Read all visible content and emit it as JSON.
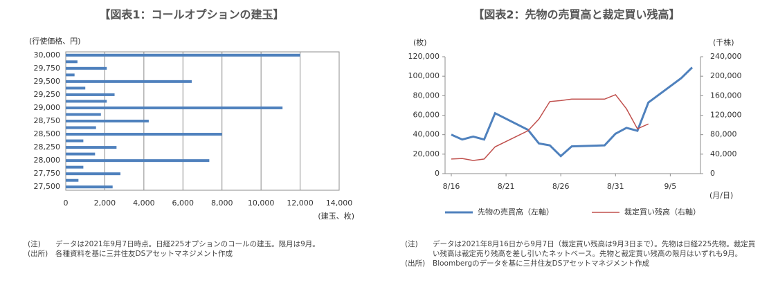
{
  "chart_data": [
    {
      "type": "bar",
      "orientation": "horizontal",
      "title": "【図表1：コールオプションの建玉】",
      "y_label": "(行使価格、円)",
      "x_label": "(建玉、枚)",
      "color": "#4f81bd",
      "grid": true,
      "categories": [
        "30,000",
        null,
        "29,750",
        null,
        "29,500",
        null,
        "29,250",
        null,
        "29,000",
        null,
        "28,750",
        null,
        "28,500",
        null,
        "28,250",
        null,
        "28,000",
        null,
        "27,750",
        null,
        "27,500"
      ],
      "values": [
        12000,
        600,
        2100,
        450,
        6450,
        1000,
        2500,
        2100,
        11100,
        1800,
        4250,
        1550,
        8000,
        900,
        2600,
        1500,
        7350,
        900,
        2800,
        650,
        2400
      ],
      "xlim": [
        0,
        14000
      ],
      "xticks": [
        0,
        {
          "value": 2000,
          "label": "2,000"
        },
        {
          "value": 4000,
          "label": "4,000"
        },
        {
          "value": 6000,
          "label": "6,000"
        },
        {
          "value": 8000,
          "label": "8,000"
        },
        {
          "value": 10000,
          "label": "10,000"
        },
        {
          "value": 12000,
          "label": "12,000"
        },
        {
          "value": 14000,
          "label": "14,000"
        }
      ],
      "notes": [
        {
          "label": "(注)",
          "text": "データは2021年9月7日時点。日経225オプションのコールの建玉。限月は9月。"
        },
        {
          "label": "(出所)",
          "text": "各種資料を基に三井住友DSアセットマネジメント作成"
        }
      ]
    },
    {
      "type": "line",
      "title": "【図表2：先物の売買高と裁定買い残高】",
      "y_label": "(枚)",
      "y2_label": "(千株)",
      "x_label": "(月/日)",
      "x": [
        "8/16",
        "8/17",
        "8/18",
        "8/19",
        "8/20",
        "8/23",
        "8/24",
        "8/25",
        "8/26",
        "8/27",
        "8/30",
        "8/31",
        "9/1",
        "9/2",
        "9/3",
        "9/6",
        "9/7"
      ],
      "xlim": [
        "8/16",
        "9/7"
      ],
      "xticks": [
        "8/16",
        "8/21",
        "8/26",
        "8/31",
        "9/5"
      ],
      "series": [
        {
          "name": "先物の売買高（左軸）",
          "color": "#4f81bd",
          "values": [
            40000,
            35000,
            38000,
            35000,
            62000,
            45000,
            31000,
            29000,
            18000,
            28000,
            29000,
            41000,
            47000,
            44000,
            73000,
            98000,
            109000
          ]
        },
        {
          "name": "裁定買い残高（右軸）",
          "color": "#c0504d",
          "axis": "y2",
          "values": [
            30000,
            31000,
            27000,
            30000,
            55000,
            88000,
            112000,
            148000,
            150000,
            153000,
            153000,
            162000,
            133000,
            92000,
            102000,
            null,
            null
          ]
        }
      ],
      "ylim": [
        0,
        120000
      ],
      "yticks": [
        0,
        {
          "value": 20000,
          "label": "20,000"
        },
        {
          "value": 40000,
          "label": "40,000"
        },
        {
          "value": 60000,
          "label": "60,000"
        },
        {
          "value": 80000,
          "label": "80,000"
        },
        {
          "value": 100000,
          "label": "100,000"
        },
        {
          "value": 120000,
          "label": "120,000"
        }
      ],
      "y2lim": [
        0,
        240000
      ],
      "y2ticks": [
        0,
        {
          "value": 40000,
          "label": "40,000"
        },
        {
          "value": 80000,
          "label": "80,000"
        },
        {
          "value": 120000,
          "label": "120,000"
        },
        {
          "value": 160000,
          "label": "160,000"
        },
        {
          "value": 200000,
          "label": "200,000"
        },
        {
          "value": 240000,
          "label": "240,000"
        }
      ],
      "notes": [
        {
          "label": "(注)",
          "text": "データは2021年8月16日から9月7日（裁定買い残高は9月3日まで）。先物は日経225先物。裁定買い残高は裁定売り残高を差し引いたネットベース。先物と裁定買い残高の限月はいずれも9月。"
        },
        {
          "label": "(出所)",
          "text": "Bloombergのデータを基に三井住友DSアセットマネジメント作成"
        }
      ]
    }
  ]
}
